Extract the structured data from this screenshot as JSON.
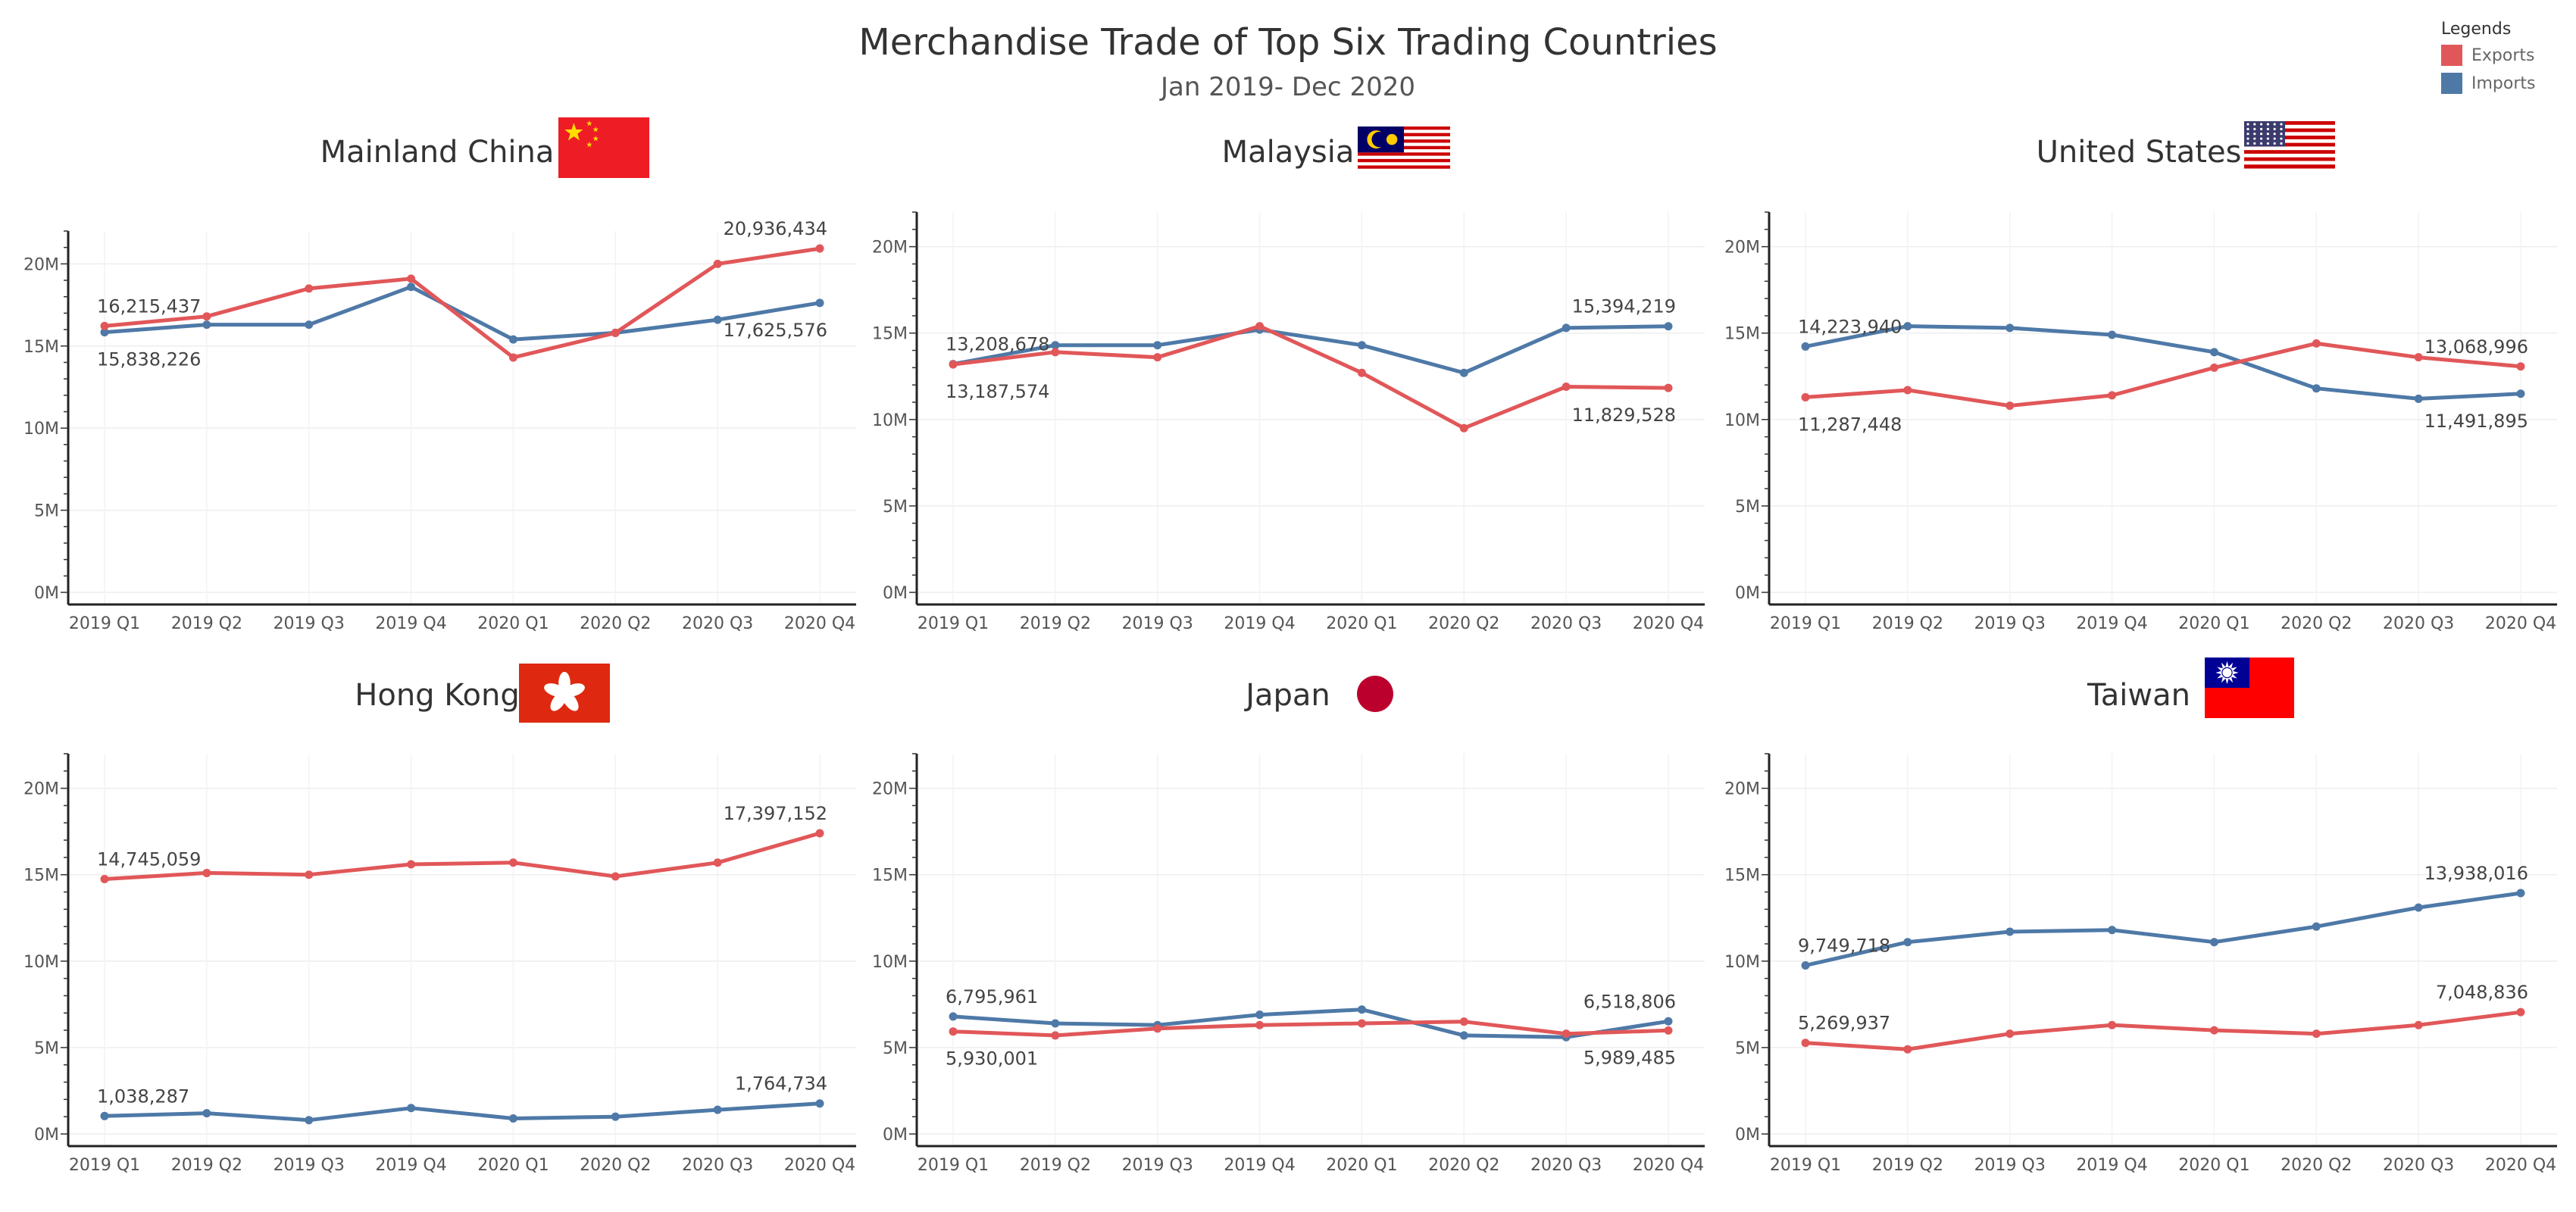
{
  "header": {
    "title": "Merchandise Trade of Top Six Trading Countries",
    "subtitle": "Jan 2019- Dec 2020"
  },
  "legend": {
    "title": "Legends",
    "items": [
      {
        "label": "Exports",
        "color": "#e15759"
      },
      {
        "label": "Imports",
        "color": "#4e79a7"
      }
    ]
  },
  "chart_data": [
    {
      "type": "line",
      "title": "Mainland China",
      "flag": "china-flag-icon",
      "categories": [
        "2019 Q1",
        "2019 Q2",
        "2019 Q3",
        "2019 Q4",
        "2020 Q1",
        "2020 Q2",
        "2020 Q3",
        "2020 Q4"
      ],
      "yticks": [
        "20M",
        "15M",
        "10M",
        "5M",
        "0M"
      ],
      "ylim": [
        0,
        22000000
      ],
      "series": [
        {
          "name": "Exports",
          "color": "#e15759",
          "values": [
            16215437,
            16800000,
            18500000,
            19100000,
            14300000,
            15800000,
            20000000,
            20936434
          ]
        },
        {
          "name": "Imports",
          "color": "#4e79a7",
          "values": [
            15838226,
            16300000,
            16300000,
            18600000,
            15400000,
            15800000,
            16600000,
            17625576
          ]
        }
      ],
      "labels": [
        {
          "text": "16,215,437",
          "series": 0,
          "index": 0,
          "pos": "above"
        },
        {
          "text": "15,838,226",
          "series": 1,
          "index": 0,
          "pos": "below"
        },
        {
          "text": "20,936,434",
          "series": 0,
          "index": 7,
          "pos": "above"
        },
        {
          "text": "17,625,576",
          "series": 1,
          "index": 7,
          "pos": "below"
        }
      ]
    },
    {
      "type": "line",
      "title": "Malaysia",
      "flag": "malaysia-flag-icon",
      "categories": [
        "2019 Q1",
        "2019 Q2",
        "2019 Q3",
        "2019 Q4",
        "2020 Q1",
        "2020 Q2",
        "2020 Q3",
        "2020 Q4"
      ],
      "yticks": [
        "20M",
        "15M",
        "10M",
        "5M",
        "0M"
      ],
      "ylim": [
        0,
        22000000
      ],
      "series": [
        {
          "name": "Exports",
          "color": "#e15759",
          "values": [
            13187574,
            13900000,
            13600000,
            15400000,
            12700000,
            9500000,
            11900000,
            11829528
          ]
        },
        {
          "name": "Imports",
          "color": "#4e79a7",
          "values": [
            13208678,
            14300000,
            14300000,
            15200000,
            14300000,
            12700000,
            15300000,
            15394219
          ]
        }
      ],
      "labels": [
        {
          "text": "13,208,678",
          "series": 1,
          "index": 0,
          "pos": "above"
        },
        {
          "text": "13,187,574",
          "series": 0,
          "index": 0,
          "pos": "below"
        },
        {
          "text": "15,394,219",
          "series": 1,
          "index": 7,
          "pos": "above"
        },
        {
          "text": "11,829,528",
          "series": 0,
          "index": 7,
          "pos": "below"
        }
      ]
    },
    {
      "type": "line",
      "title": "United States",
      "flag": "us-flag-icon",
      "categories": [
        "2019 Q1",
        "2019 Q2",
        "2019 Q3",
        "2019 Q4",
        "2020 Q1",
        "2020 Q2",
        "2020 Q3",
        "2020 Q4"
      ],
      "yticks": [
        "20M",
        "15M",
        "10M",
        "5M",
        "0M"
      ],
      "ylim": [
        0,
        22000000
      ],
      "series": [
        {
          "name": "Exports",
          "color": "#e15759",
          "values": [
            11287448,
            11700000,
            10800000,
            11400000,
            13000000,
            14400000,
            13600000,
            13068996
          ]
        },
        {
          "name": "Imports",
          "color": "#4e79a7",
          "values": [
            14223940,
            15400000,
            15300000,
            14900000,
            13900000,
            11800000,
            11200000,
            11491895
          ]
        }
      ],
      "labels": [
        {
          "text": "14,223,940",
          "series": 1,
          "index": 0,
          "pos": "above"
        },
        {
          "text": "11,287,448",
          "series": 0,
          "index": 0,
          "pos": "below"
        },
        {
          "text": "13,068,996",
          "series": 0,
          "index": 7,
          "pos": "above"
        },
        {
          "text": "11,491,895",
          "series": 1,
          "index": 7,
          "pos": "below"
        }
      ]
    },
    {
      "type": "line",
      "title": "Hong Kong",
      "flag": "hong-kong-flag-icon",
      "categories": [
        "2019 Q1",
        "2019 Q2",
        "2019 Q3",
        "2019 Q4",
        "2020 Q1",
        "2020 Q2",
        "2020 Q3",
        "2020 Q4"
      ],
      "yticks": [
        "20M",
        "15M",
        "10M",
        "5M",
        "0M"
      ],
      "ylim": [
        0,
        22000000
      ],
      "series": [
        {
          "name": "Exports",
          "color": "#e15759",
          "values": [
            14745059,
            15100000,
            15000000,
            15600000,
            15700000,
            14900000,
            15700000,
            17397152
          ]
        },
        {
          "name": "Imports",
          "color": "#4e79a7",
          "values": [
            1038287,
            1200000,
            800000,
            1500000,
            900000,
            1000000,
            1400000,
            1764734
          ]
        }
      ],
      "labels": [
        {
          "text": "14,745,059",
          "series": 0,
          "index": 0,
          "pos": "above"
        },
        {
          "text": "1,038,287",
          "series": 1,
          "index": 0,
          "pos": "above"
        },
        {
          "text": "17,397,152",
          "series": 0,
          "index": 7,
          "pos": "above"
        },
        {
          "text": "1,764,734",
          "series": 1,
          "index": 7,
          "pos": "above"
        }
      ]
    },
    {
      "type": "line",
      "title": "Japan",
      "flag": "japan-flag-icon",
      "categories": [
        "2019 Q1",
        "2019 Q2",
        "2019 Q3",
        "2019 Q4",
        "2020 Q1",
        "2020 Q2",
        "2020 Q3",
        "2020 Q4"
      ],
      "yticks": [
        "20M",
        "15M",
        "10M",
        "5M",
        "0M"
      ],
      "ylim": [
        0,
        22000000
      ],
      "series": [
        {
          "name": "Exports",
          "color": "#e15759",
          "values": [
            5930001,
            5700000,
            6100000,
            6300000,
            6400000,
            6500000,
            5800000,
            5989485
          ]
        },
        {
          "name": "Imports",
          "color": "#4e79a7",
          "values": [
            6795961,
            6400000,
            6300000,
            6900000,
            7200000,
            5700000,
            5600000,
            6518806
          ]
        }
      ],
      "labels": [
        {
          "text": "6,795,961",
          "series": 1,
          "index": 0,
          "pos": "above"
        },
        {
          "text": "5,930,001",
          "series": 0,
          "index": 0,
          "pos": "below"
        },
        {
          "text": "6,518,806",
          "series": 1,
          "index": 7,
          "pos": "above"
        },
        {
          "text": "5,989,485",
          "series": 0,
          "index": 7,
          "pos": "below"
        }
      ]
    },
    {
      "type": "line",
      "title": "Taiwan",
      "flag": "taiwan-flag-icon",
      "categories": [
        "2019 Q1",
        "2019 Q2",
        "2019 Q3",
        "2019 Q4",
        "2020 Q1",
        "2020 Q2",
        "2020 Q3",
        "2020 Q4"
      ],
      "yticks": [
        "20M",
        "15M",
        "10M",
        "5M",
        "0M"
      ],
      "ylim": [
        0,
        22000000
      ],
      "series": [
        {
          "name": "Exports",
          "color": "#e15759",
          "values": [
            5269937,
            4900000,
            5800000,
            6300000,
            6000000,
            5800000,
            6300000,
            7048836
          ]
        },
        {
          "name": "Imports",
          "color": "#4e79a7",
          "values": [
            9749718,
            11100000,
            11700000,
            11800000,
            11100000,
            12000000,
            13100000,
            13938016
          ]
        }
      ],
      "labels": [
        {
          "text": "9,749,718",
          "series": 1,
          "index": 0,
          "pos": "above"
        },
        {
          "text": "5,269,937",
          "series": 0,
          "index": 0,
          "pos": "above"
        },
        {
          "text": "13,938,016",
          "series": 1,
          "index": 7,
          "pos": "above"
        },
        {
          "text": "7,048,836",
          "series": 0,
          "index": 7,
          "pos": "above"
        }
      ]
    }
  ]
}
